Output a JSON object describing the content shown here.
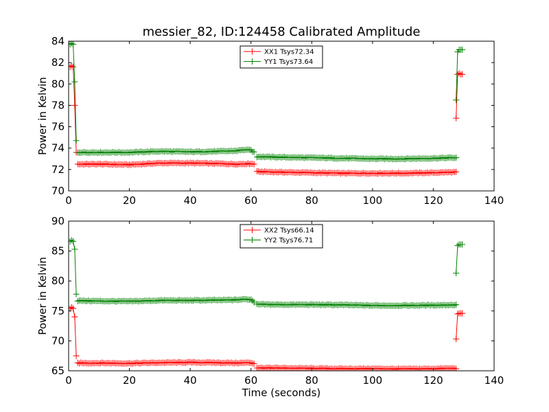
{
  "chart_data": [
    {
      "type": "line",
      "title": "messier_82, ID:124458 Calibrated Amplitude",
      "xlabel": "",
      "ylabel": "Power in Kelvin",
      "xlim": [
        0,
        140
      ],
      "ylim": [
        70,
        84
      ],
      "xticks": [
        0,
        20,
        40,
        60,
        80,
        100,
        120,
        140
      ],
      "yticks": [
        70,
        72,
        74,
        76,
        78,
        80,
        82,
        84
      ],
      "legend_position": "top-center",
      "grid": false,
      "series": [
        {
          "name": "XX1 Tsys72.34",
          "color": "#ff0000",
          "marker": "+",
          "segments": [
            {
              "x": [
                0.5,
                1,
                1.5,
                2,
                2.5
              ],
              "y": [
                81.6,
                81.7,
                81.6,
                78.0,
                73.6
              ]
            },
            {
              "x": [
                3,
                10,
                20,
                30,
                40,
                50,
                55,
                60,
                61
              ],
              "y": [
                72.5,
                72.5,
                72.45,
                72.6,
                72.6,
                72.55,
                72.5,
                72.55,
                72.5
              ]
            },
            {
              "x": [
                62,
                70,
                80,
                90,
                100,
                110,
                120,
                126,
                127.5
              ],
              "y": [
                71.8,
                71.75,
                71.7,
                71.65,
                71.65,
                71.65,
                71.7,
                71.75,
                71.75
              ]
            },
            {
              "x": [
                127.5,
                128,
                128.5,
                129,
                129.5
              ],
              "y": [
                76.8,
                80.9,
                81.0,
                80.9,
                80.9
              ]
            }
          ]
        },
        {
          "name": "YY1 Tsys73.64",
          "color": "#008000",
          "marker": "+",
          "segments": [
            {
              "x": [
                0.5,
                1,
                1.5,
                2,
                2.5
              ],
              "y": [
                83.7,
                83.8,
                83.7,
                80.2,
                74.7
              ]
            },
            {
              "x": [
                3,
                10,
                20,
                30,
                40,
                50,
                55,
                58,
                60,
                61
              ],
              "y": [
                73.6,
                73.6,
                73.6,
                73.7,
                73.65,
                73.7,
                73.75,
                73.85,
                73.8,
                73.6
              ]
            },
            {
              "x": [
                62,
                70,
                80,
                90,
                100,
                110,
                120,
                126,
                127.5
              ],
              "y": [
                73.2,
                73.15,
                73.1,
                73.05,
                73.0,
                73.0,
                73.05,
                73.1,
                73.1
              ]
            },
            {
              "x": [
                127.5,
                128,
                128.5,
                129,
                129.5
              ],
              "y": [
                78.5,
                83.0,
                83.2,
                83.2,
                83.2
              ]
            }
          ]
        }
      ]
    },
    {
      "type": "line",
      "title": "",
      "xlabel": "Time (seconds)",
      "ylabel": "Power in Kelvin",
      "xlim": [
        0,
        140
      ],
      "ylim": [
        65,
        90
      ],
      "xticks": [
        0,
        20,
        40,
        60,
        80,
        100,
        120,
        140
      ],
      "yticks": [
        65,
        70,
        75,
        80,
        85,
        90
      ],
      "legend_position": "top-center",
      "grid": false,
      "series": [
        {
          "name": "XX2 Tsys66.14",
          "color": "#ff0000",
          "marker": "+",
          "segments": [
            {
              "x": [
                0.5,
                1,
                1.5,
                2,
                2.5
              ],
              "y": [
                75.4,
                75.6,
                75.4,
                74.0,
                67.5
              ]
            },
            {
              "x": [
                3,
                10,
                20,
                30,
                40,
                50,
                55,
                60,
                61
              ],
              "y": [
                66.3,
                66.3,
                66.25,
                66.35,
                66.4,
                66.35,
                66.3,
                66.35,
                66.2
              ]
            },
            {
              "x": [
                62,
                70,
                80,
                90,
                100,
                110,
                120,
                126,
                127.5
              ],
              "y": [
                65.5,
                65.45,
                65.4,
                65.35,
                65.35,
                65.3,
                65.35,
                65.4,
                65.4
              ]
            },
            {
              "x": [
                127.5,
                128,
                128.5,
                129,
                129.5
              ],
              "y": [
                70.3,
                74.5,
                74.6,
                74.6,
                74.6
              ]
            }
          ]
        },
        {
          "name": "YY2 Tsys76.71",
          "color": "#008000",
          "marker": "+",
          "segments": [
            {
              "x": [
                0.5,
                1,
                1.5,
                2,
                2.5
              ],
              "y": [
                86.6,
                86.8,
                86.6,
                85.3,
                77.8
              ]
            },
            {
              "x": [
                3,
                10,
                20,
                30,
                40,
                50,
                55,
                58,
                60,
                61
              ],
              "y": [
                76.7,
                76.65,
                76.6,
                76.75,
                76.75,
                76.8,
                76.85,
                76.95,
                76.9,
                76.5
              ]
            },
            {
              "x": [
                62,
                70,
                80,
                90,
                100,
                110,
                120,
                126,
                127.5
              ],
              "y": [
                76.1,
                76.05,
                76.05,
                76.0,
                75.9,
                75.9,
                75.95,
                76.0,
                76.0
              ]
            },
            {
              "x": [
                127.5,
                128,
                128.5,
                129,
                129.5
              ],
              "y": [
                81.3,
                85.9,
                86.1,
                86.1,
                86.1
              ]
            }
          ]
        }
      ]
    }
  ]
}
